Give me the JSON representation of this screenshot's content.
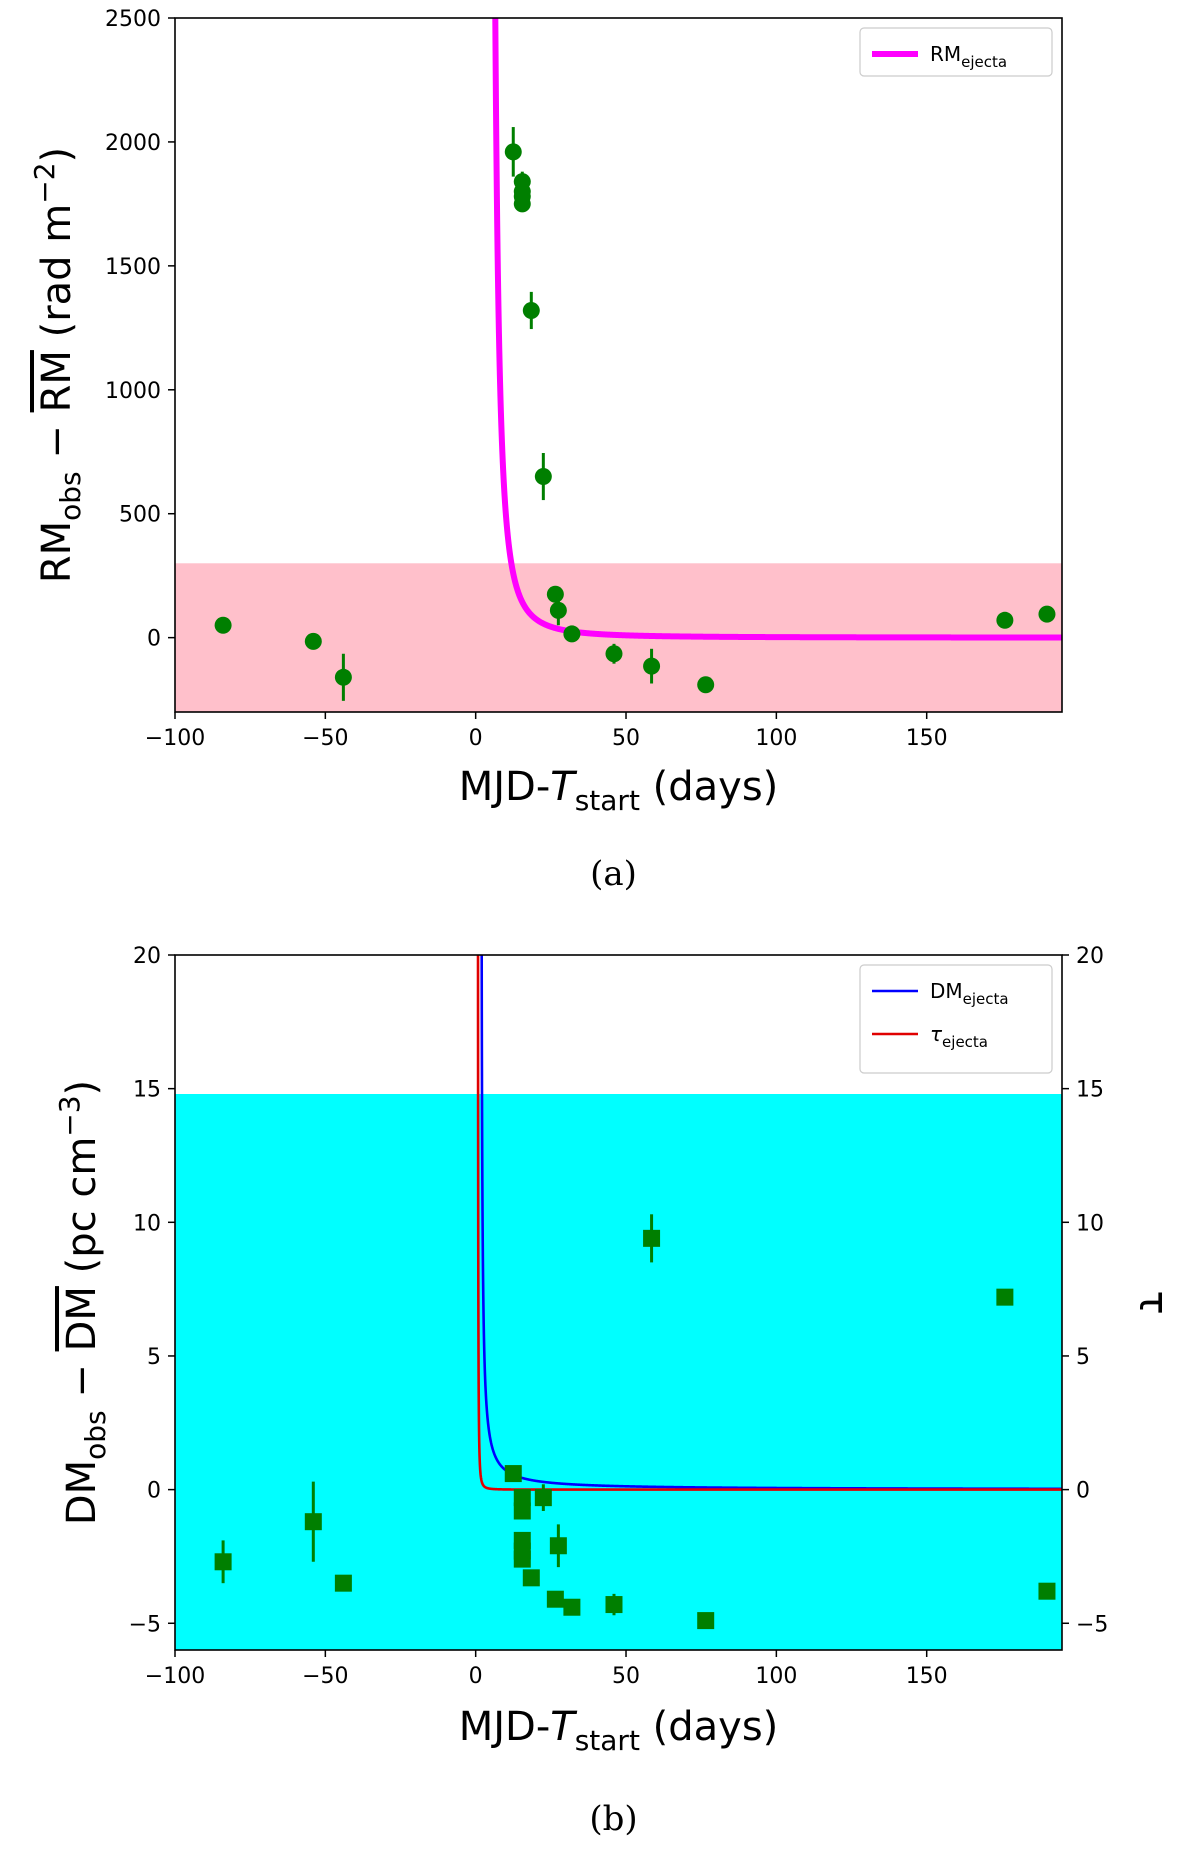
{
  "chart_data": [
    {
      "type": "scatter",
      "caption": "(a)",
      "xlabel": {
        "main": "MJD-",
        "var": "T",
        "sub": "start",
        "tail": " (days)"
      },
      "ylabel": {
        "main": "RM",
        "sub": "obs",
        "mid": " − ",
        "bar": "RM",
        "tail": " (rad m",
        "sup": "−2",
        "end": ")"
      },
      "xlim": [
        -100,
        195
      ],
      "ylim": [
        -300,
        2500
      ],
      "xticks": [
        -100,
        -50,
        0,
        50,
        100,
        150
      ],
      "yticks": [
        0,
        500,
        1000,
        1500,
        2000,
        2500
      ],
      "xtick_labels": [
        "−100",
        "−50",
        "0",
        "50",
        "100",
        "150"
      ],
      "ytick_labels": [
        "0",
        "500",
        "1000",
        "1500",
        "2000",
        "2500"
      ],
      "band": {
        "y0": -300,
        "y1": 300,
        "color": "#ffc0cb"
      },
      "legend": {
        "position": "top-right",
        "entries": [
          {
            "main": "RM",
            "sub": "ejecta",
            "color": "#ff00ff"
          }
        ]
      },
      "model_curve": {
        "color": "#ff00ff",
        "t0": 3.7,
        "amplitude": 20000,
        "index": 2
      },
      "points": {
        "color": "#007f00",
        "marker": "circle",
        "x": [
          -84,
          -54,
          -44,
          12.5,
          15.5,
          15.5,
          15.5,
          15.5,
          18.5,
          22.5,
          26.5,
          27.5,
          32,
          46,
          58.5,
          76.5,
          176,
          190
        ],
        "y": [
          50,
          -15,
          -160,
          1960,
          1840,
          1800,
          1780,
          1750,
          1320,
          650,
          175,
          110,
          15,
          -65,
          -115,
          -190,
          70,
          95
        ],
        "err": [
          0,
          0,
          95,
          100,
          40,
          30,
          30,
          30,
          75,
          95,
          30,
          60,
          0,
          40,
          70,
          25,
          0,
          0
        ]
      }
    },
    {
      "type": "scatter",
      "caption": "(b)",
      "xlabel": {
        "main": "MJD-",
        "var": "T",
        "sub": "start",
        "tail": " (days)"
      },
      "ylabel": {
        "main": "DM",
        "sub": "obs",
        "mid": " − ",
        "bar": "DM",
        "tail": " (pc cm",
        "sup": "−3",
        "end": ")"
      },
      "y2label": "τ",
      "xlim": [
        -100,
        195
      ],
      "ylim": [
        -6,
        20
      ],
      "y2lim": [
        -6,
        20
      ],
      "xticks": [
        -100,
        -50,
        0,
        50,
        100,
        150
      ],
      "yticks": [
        -5,
        0,
        5,
        10,
        15,
        20
      ],
      "xtick_labels": [
        "−100",
        "−50",
        "0",
        "50",
        "100",
        "150"
      ],
      "ytick_labels": [
        "−5",
        "0",
        "5",
        "10",
        "15",
        "20"
      ],
      "band": {
        "y0": -6,
        "y1": 14.8,
        "color": "#00ffff"
      },
      "legend": {
        "position": "top-right",
        "entries": [
          {
            "main": "DM",
            "sub": "ejecta",
            "color": "#0000ff"
          },
          {
            "main": "τ",
            "sub": "ejecta",
            "color": "#e00000"
          }
        ]
      },
      "model_curves": [
        {
          "name": "DM_ejecta",
          "color": "#0000ff",
          "t0": 1.7,
          "amplitude": 6,
          "index": 1
        },
        {
          "name": "tau_ejecta",
          "color": "#e00000",
          "t0": 0.6,
          "amplitude": 0.6,
          "index": 2
        }
      ],
      "points": {
        "color": "#007f00",
        "marker": "square",
        "x": [
          -84,
          -54,
          -44,
          12.5,
          15.5,
          15.5,
          15.5,
          15.5,
          15.5,
          18.5,
          22.5,
          26.5,
          27.5,
          32,
          46,
          58.5,
          76.5,
          176,
          190
        ],
        "y": [
          -2.7,
          -1.2,
          -3.5,
          0.6,
          -0.3,
          -0.8,
          -1.9,
          -2.3,
          -2.6,
          -3.3,
          -0.3,
          -4.1,
          -2.1,
          -4.4,
          -4.3,
          9.4,
          -4.9,
          7.2,
          -3.8
        ],
        "err": [
          0.8,
          1.5,
          0,
          0.3,
          0.3,
          0.3,
          0.3,
          0.3,
          0.3,
          0,
          0.5,
          0,
          0.8,
          0,
          0.4,
          0.9,
          0,
          0,
          0.3
        ]
      }
    }
  ]
}
